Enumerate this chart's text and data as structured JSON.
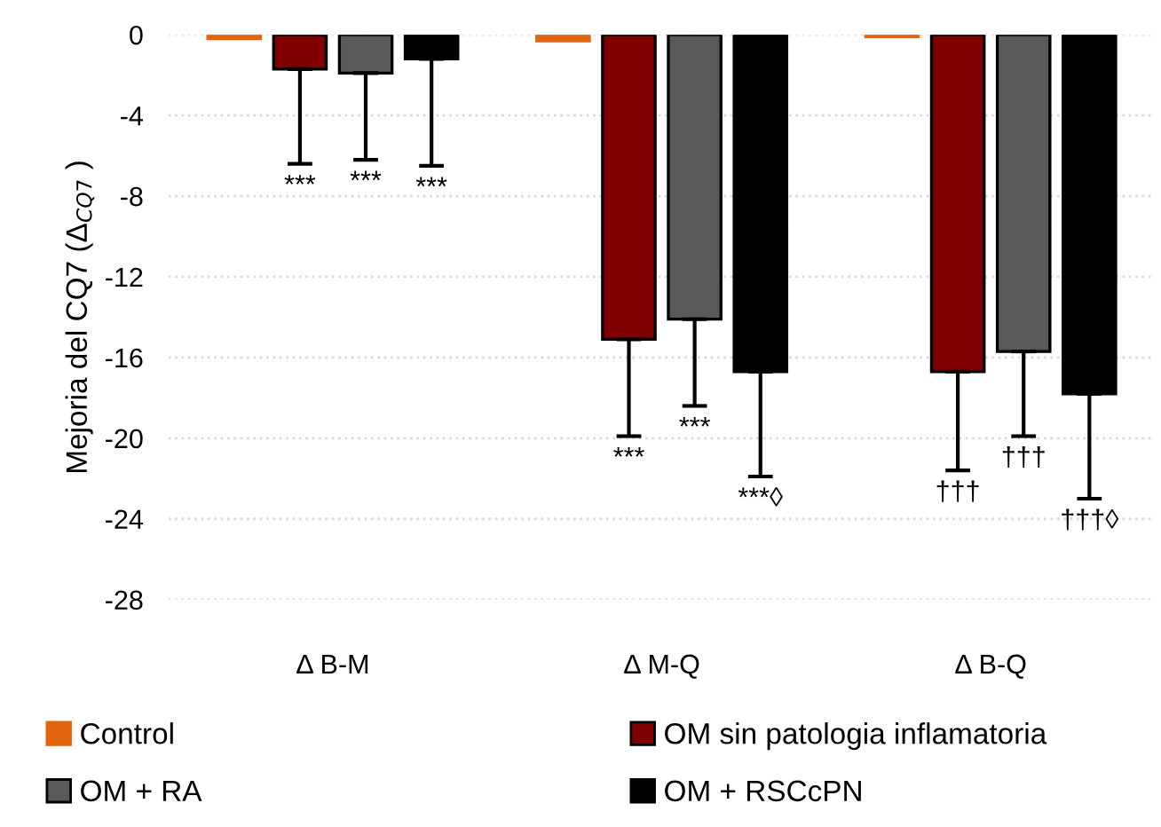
{
  "chart_data": {
    "type": "bar",
    "ylabel": "Mejoria del CQ7 (Δ$_{CQ7}$ )",
    "categories": [
      "Δ B-M",
      "Δ M-Q",
      "Δ B-Q"
    ],
    "series": [
      {
        "name": "Control",
        "color": "#e2640f",
        "values": [
          -0.2,
          -0.3,
          -0.1
        ]
      },
      {
        "name": "OM sin patologia inflamatoria",
        "color": "#800000",
        "values": [
          -1.7,
          -15.1,
          -16.7
        ],
        "errors": [
          [
            -6.4,
            -1.7
          ],
          [
            -19.9,
            -15.1
          ],
          [
            -21.6,
            -16.7
          ]
        ]
      },
      {
        "name": "OM + RA",
        "color": "#595959",
        "values": [
          -1.9,
          -14.1,
          -15.7
        ],
        "errors": [
          [
            -6.2,
            -1.9
          ],
          [
            -18.4,
            -14.1
          ],
          [
            -19.9,
            -15.7
          ]
        ]
      },
      {
        "name": "OM + RSCcPN",
        "color": "#000000",
        "values": [
          -1.2,
          -16.7,
          -17.8
        ],
        "errors": [
          [
            -6.5,
            -1.2
          ],
          [
            -21.9,
            -16.7
          ],
          [
            -23.0,
            -17.8
          ]
        ]
      }
    ],
    "annotations": [
      "***",
      "***",
      "***",
      "***",
      "***",
      "***◊",
      "†††",
      "†††",
      "†††◊"
    ],
    "ylim": [
      -28,
      0
    ],
    "yticks": [
      0,
      -4,
      -8,
      -12,
      -16,
      -20,
      -24,
      -28
    ],
    "grid": "y",
    "legend": "bottom"
  }
}
